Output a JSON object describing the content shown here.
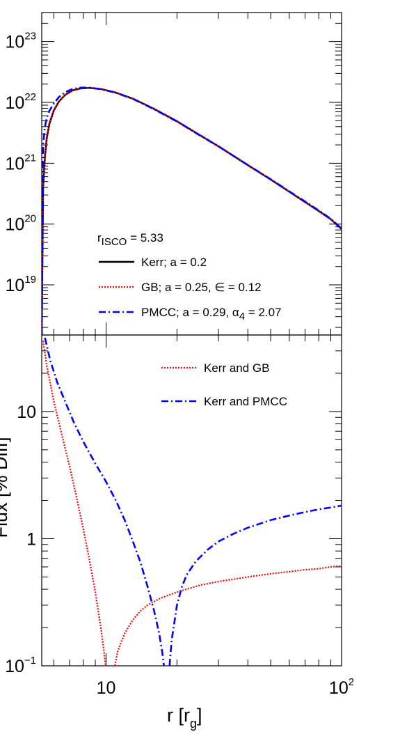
{
  "chart_data": [
    {
      "type": "line",
      "panel": "upper",
      "title": "",
      "xlabel": "",
      "ylabel": "",
      "xscale": "log",
      "yscale": "log",
      "xlim": [
        5.33,
        100
      ],
      "ylim": [
        1.5e+18,
        3e+23
      ],
      "ytick_labels": [
        {
          "value": 1e+19,
          "base": "10",
          "exp": "19"
        },
        {
          "value": 1e+20,
          "base": "10",
          "exp": "20"
        },
        {
          "value": 1e+21,
          "base": "10",
          "exp": "21"
        },
        {
          "value": 1e+22,
          "base": "10",
          "exp": "22"
        },
        {
          "value": 1e+23,
          "base": "10",
          "exp": "23"
        }
      ],
      "annotation": {
        "text_main": "r",
        "text_sub": "ISCO",
        "text_rest": " = 5.33"
      },
      "legend_position": "bottom-center",
      "series": [
        {
          "name": "Kerr; a = 0.2",
          "color": "#000000",
          "style": "solid",
          "x": [
            5.33,
            5.4,
            5.5,
            5.6,
            5.75,
            6.0,
            6.3,
            6.7,
            7.2,
            7.8,
            8.5,
            9.5,
            11,
            13,
            16,
            20,
            25,
            30,
            40,
            50,
            60,
            70,
            80,
            90,
            100
          ],
          "y": [
            1.5e+18,
            4e+20,
            1.3e+21,
            2.6e+21,
            4.5e+21,
            7.4e+21,
            1.03e+22,
            1.33e+22,
            1.57e+22,
            1.7e+22,
            1.73e+22,
            1.66e+22,
            1.45e+22,
            1.15e+22,
            7.8e+21,
            4.9e+21,
            2.9e+21,
            1.9e+21,
            9.3e+20,
            5.4e+20,
            3.4e+20,
            2.3e+20,
            1.64e+20,
            1.2e+20,
            8.3e+19
          ]
        },
        {
          "name": "GB; a = 0.25, ∈ = 0.12",
          "color": "#ff0000",
          "style": "dotted",
          "x": [
            5.33,
            5.4,
            5.5,
            5.6,
            5.75,
            6.0,
            6.3,
            6.7,
            7.2,
            7.8,
            8.5,
            9.5,
            11,
            13,
            16,
            20,
            25,
            30,
            40,
            50,
            60,
            70,
            80,
            90,
            100
          ],
          "y": [
            1.5e+18,
            4.5e+20,
            1.4e+21,
            2.7e+21,
            4.6e+21,
            7.5e+21,
            1.04e+22,
            1.34e+22,
            1.58e+22,
            1.71e+22,
            1.74e+22,
            1.665e+22,
            1.455e+22,
            1.153e+22,
            7.82e+21,
            4.91e+21,
            2.91e+21,
            1.905e+21,
            9.33e+20,
            5.42e+20,
            3.41e+20,
            2.31e+20,
            1.65e+20,
            1.207e+20,
            8.35e+19
          ]
        },
        {
          "name": "PMCC; a = 0.29, α",
          "name_sub": "4",
          "name_rest": " = 2.07",
          "color": "#0000ff",
          "style": "dashdot",
          "x": [
            5.33,
            5.4,
            5.5,
            5.6,
            5.75,
            6.0,
            6.3,
            6.7,
            7.2,
            7.8,
            8.5,
            9.5,
            11,
            13,
            16,
            20,
            25,
            30,
            40,
            50,
            60,
            70,
            80,
            90,
            100
          ],
          "y": [
            1.5e+18,
            2e+21,
            4e+21,
            5.6e+21,
            7.3e+21,
            9.6e+21,
            1.22e+22,
            1.47e+22,
            1.66e+22,
            1.75e+22,
            1.75e+22,
            1.65e+22,
            1.44e+22,
            1.14e+22,
            7.7e+21,
            4.85e+21,
            2.87e+21,
            1.89e+21,
            9.35e+20,
            5.45e+20,
            3.45e+20,
            2.35e+20,
            1.67e+20,
            1.22e+20,
            8.45e+19
          ]
        }
      ]
    },
    {
      "type": "line",
      "panel": "lower",
      "title": "",
      "xlabel_main": "r [r",
      "xlabel_sub": "g",
      "xlabel_rest": "]",
      "ylabel": "Flux [% Diff]",
      "xscale": "log",
      "yscale": "log",
      "xlim": [
        5.33,
        100
      ],
      "ylim": [
        0.1,
        40
      ],
      "xtick_labels": [
        {
          "value": 10,
          "base": "10",
          "exp": ""
        },
        {
          "value": 100,
          "base": "10",
          "exp": "2"
        }
      ],
      "ytick_labels": [
        {
          "value": 0.1,
          "base": "10",
          "exp": "−1"
        },
        {
          "value": 1,
          "base": "1",
          "exp": ""
        },
        {
          "value": 10,
          "base": "10",
          "exp": ""
        }
      ],
      "legend_position": "top-right",
      "series": [
        {
          "name": "Kerr and GB",
          "color": "#ff0000",
          "style": "dotted",
          "x": [
            5.4,
            5.6,
            6.0,
            6.5,
            7.0,
            7.5,
            8.0,
            8.5,
            9.0,
            9.5,
            9.8,
            9.95
          ],
          "y": [
            36,
            23,
            12,
            6.5,
            3.7,
            2.1,
            1.2,
            0.68,
            0.38,
            0.2,
            0.13,
            0.1
          ]
        },
        {
          "name": "",
          "color": "#ff0000",
          "style": "dotted",
          "x": [
            10.9,
            11.2,
            12,
            13,
            14,
            15,
            17,
            20,
            25,
            30,
            40,
            50,
            60,
            70,
            80,
            90,
            100
          ],
          "y": [
            0.1,
            0.13,
            0.18,
            0.23,
            0.27,
            0.3,
            0.34,
            0.38,
            0.43,
            0.46,
            0.5,
            0.53,
            0.55,
            0.57,
            0.58,
            0.6,
            0.61
          ]
        },
        {
          "name": "Kerr and PMCC",
          "color": "#0000ff",
          "style": "dashdot",
          "x": [
            5.5,
            5.8,
            6.2,
            6.7,
            7.3,
            8.0,
            9.0,
            10,
            11,
            12,
            13,
            14,
            15,
            16,
            16.8,
            17.3,
            17.6
          ],
          "y": [
            38,
            25,
            17,
            12,
            8.2,
            5.8,
            3.9,
            2.8,
            2.0,
            1.4,
            0.95,
            0.65,
            0.42,
            0.27,
            0.18,
            0.13,
            0.1
          ]
        },
        {
          "name": "",
          "color": "#0000ff",
          "style": "dashdot",
          "x": [
            18.6,
            19,
            20,
            21,
            22,
            24,
            27,
            30,
            35,
            40,
            50,
            60,
            70,
            80,
            90,
            100
          ],
          "y": [
            0.1,
            0.16,
            0.3,
            0.42,
            0.52,
            0.66,
            0.82,
            0.95,
            1.1,
            1.22,
            1.4,
            1.52,
            1.62,
            1.7,
            1.76,
            1.82
          ]
        }
      ]
    }
  ]
}
